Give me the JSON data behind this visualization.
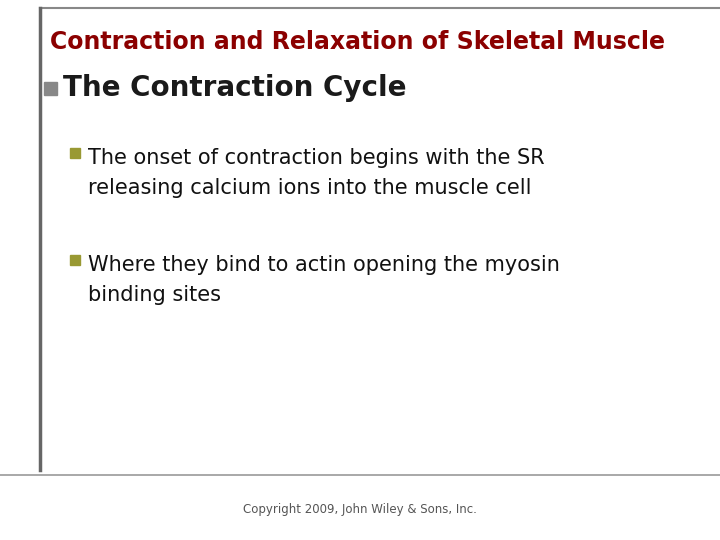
{
  "title": "Contraction and Relaxation of Skeletal Muscle",
  "title_color": "#8B0000",
  "title_fontsize": 17,
  "section_heading": "The Contraction Cycle",
  "section_heading_color": "#1a1a1a",
  "section_heading_fontsize": 20,
  "bullet_marker_color": "#888888",
  "sub_bullet_marker_color": "#999933",
  "bullet1_line1": "The onset of contraction begins with the SR",
  "bullet1_line2": "releasing calcium ions into the muscle cell",
  "bullet2_line1": "Where they bind to actin opening the myosin",
  "bullet2_line2": "binding sites",
  "bullet_fontsize": 15,
  "copyright_text": "Copyright 2009, John Wiley & Sons, Inc.",
  "copyright_fontsize": 8.5,
  "copyright_color": "#555555",
  "background_color": "#ffffff",
  "left_bar_color": "#666666",
  "top_line_color": "#888888",
  "bottom_line_color": "#999999"
}
